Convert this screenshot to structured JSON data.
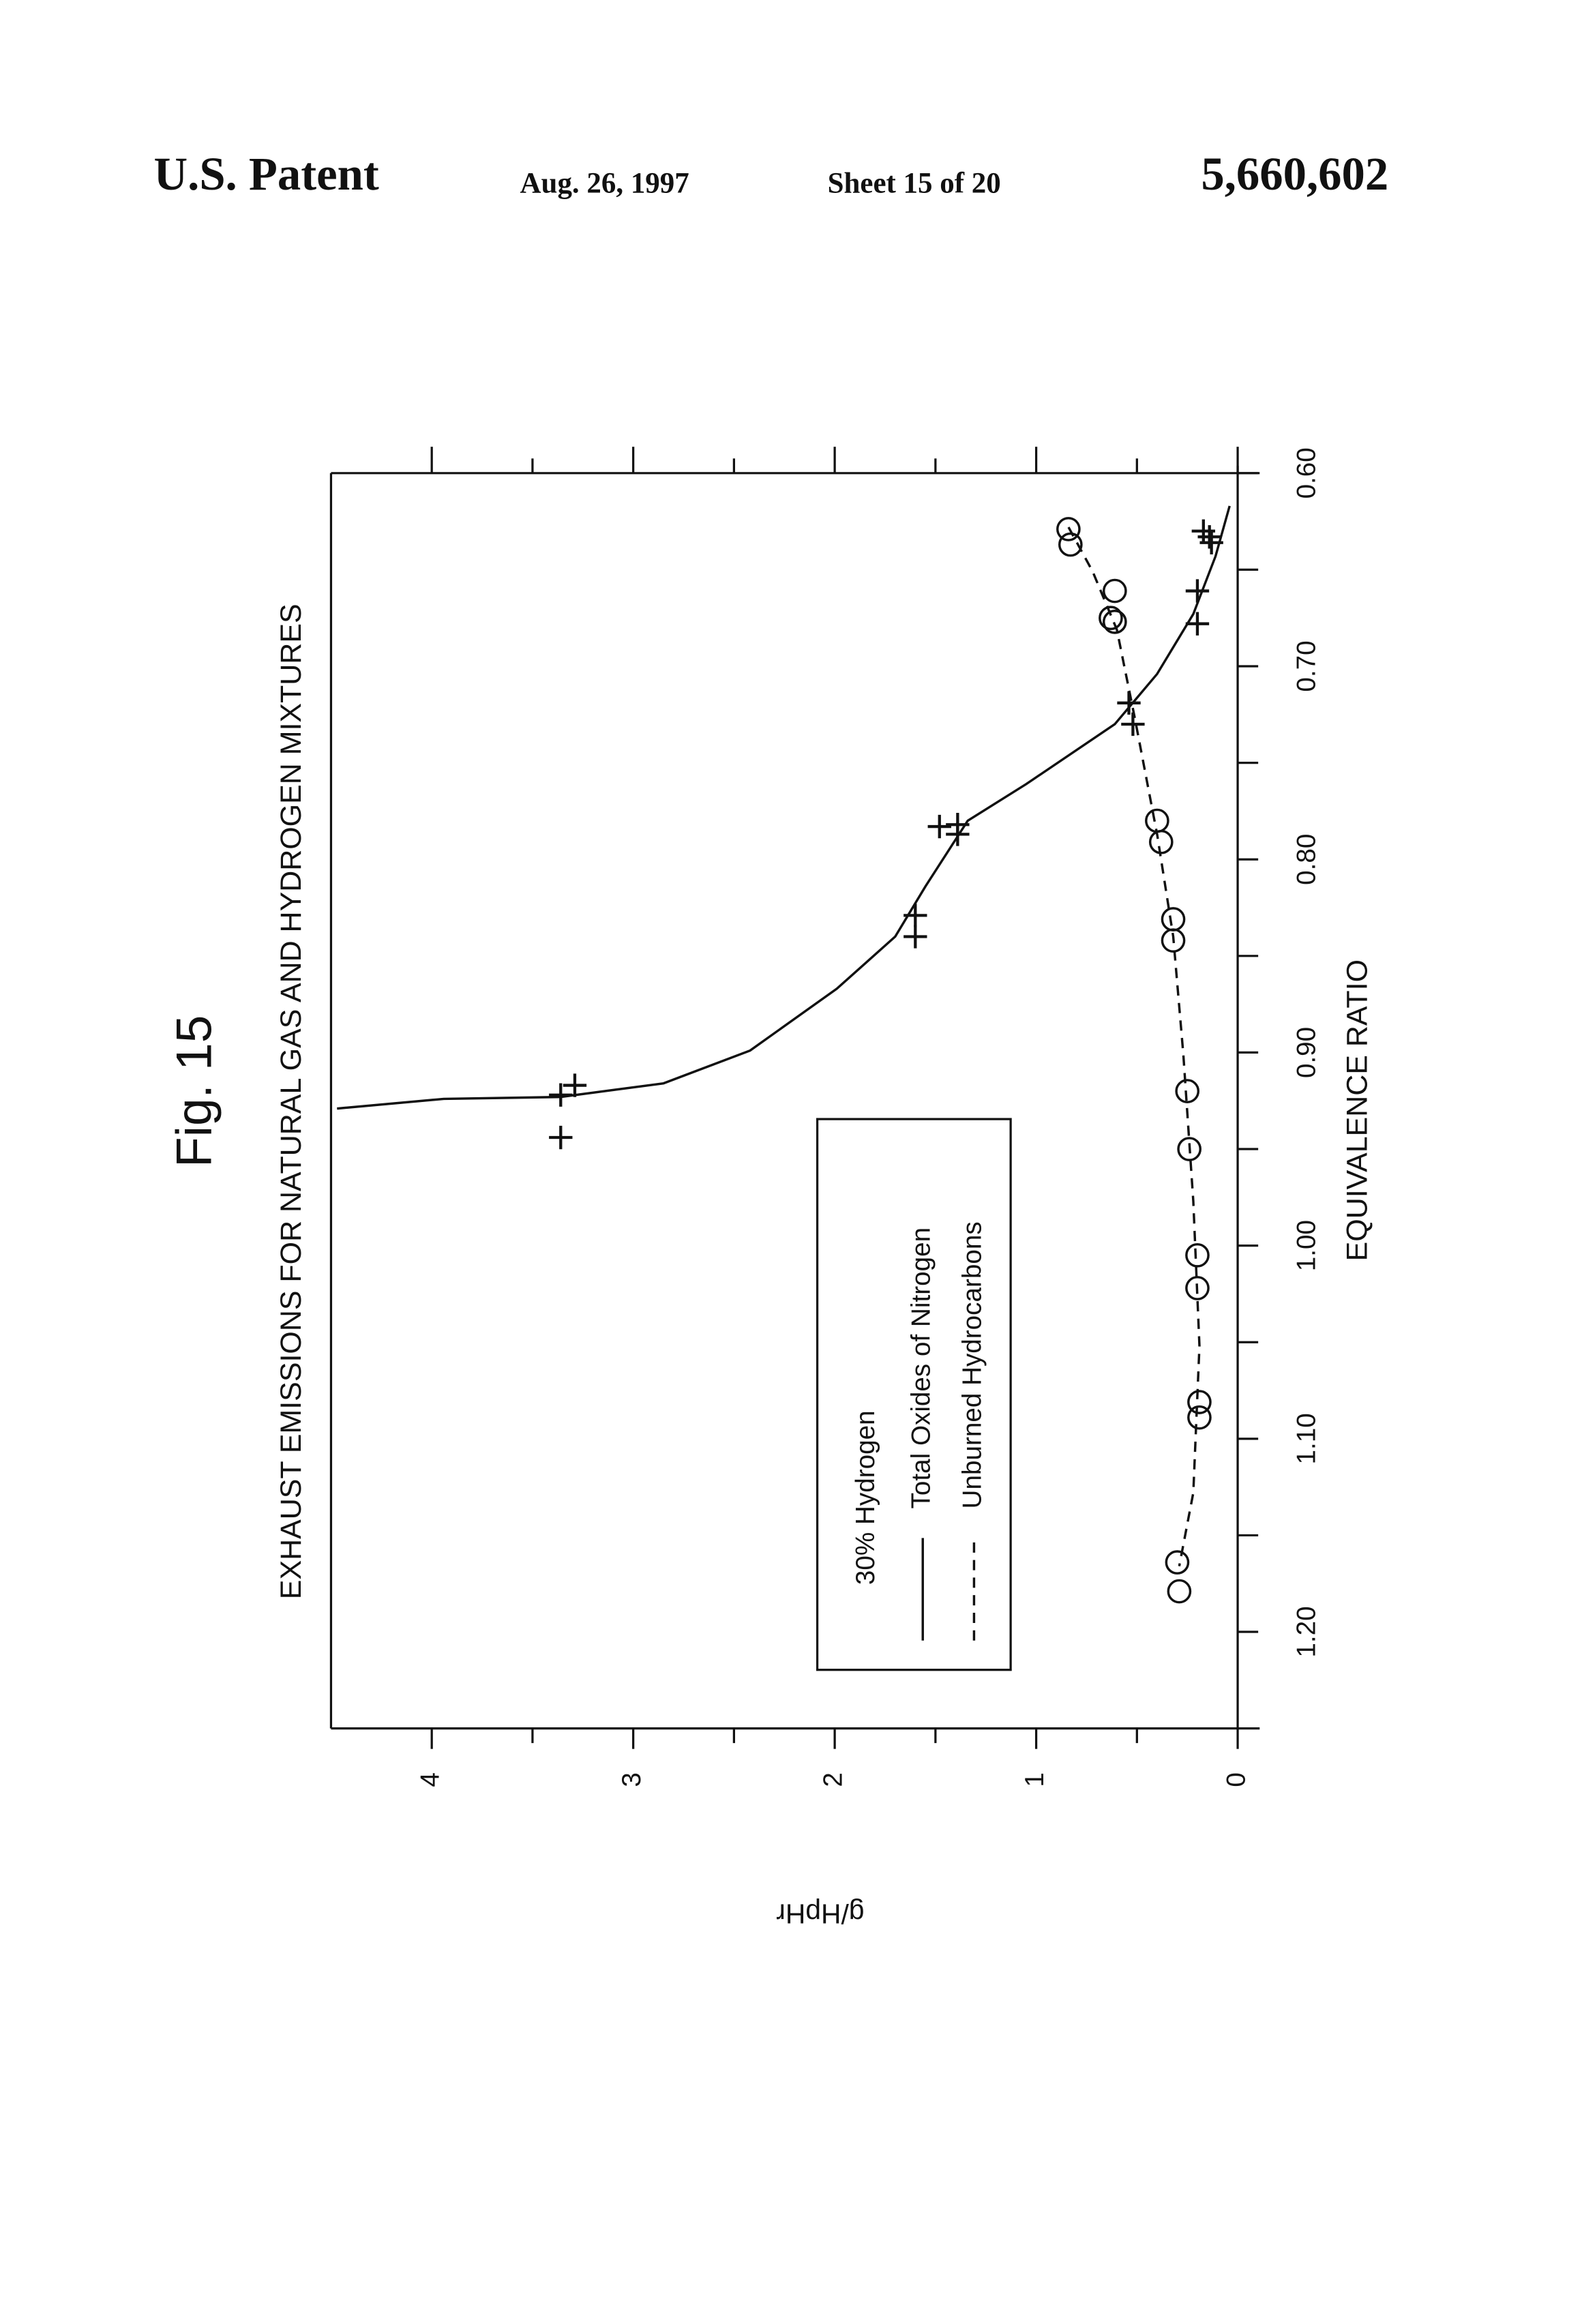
{
  "header": {
    "left": "U.S. Patent",
    "date": "Aug. 26, 1997",
    "sheet": "Sheet 15 of 20",
    "number": "5,660,602"
  },
  "chart_data": {
    "type": "scatter",
    "figure_label": "Fig. 15",
    "title": "EXHAUST EMISSIONS FOR NATURAL GAS AND HYDROGEN MIXTURES",
    "xlabel": "EQUIVALENCE RATIO",
    "ylabel": "g/HpHr",
    "legend_title": "30% Hydrogen",
    "xlim": [
      0.6,
      1.25
    ],
    "ylim": [
      0,
      4.5
    ],
    "xticks": [
      {
        "value": 0.6,
        "label": "0.60"
      },
      {
        "value": 0.7,
        "label": "0.70"
      },
      {
        "value": 0.8,
        "label": "0.80"
      },
      {
        "value": 0.9,
        "label": "0.90"
      },
      {
        "value": 1.0,
        "label": "1.00"
      },
      {
        "value": 1.1,
        "label": "1.10"
      },
      {
        "value": 1.2,
        "label": "1.20"
      }
    ],
    "xticks_minor": [
      0.65,
      0.75,
      0.85,
      0.95,
      1.05,
      1.15
    ],
    "yticks": [
      0,
      1,
      2,
      3,
      4
    ],
    "yticks_minor": [
      0.5,
      1.5,
      2.5,
      3.5
    ],
    "series": [
      {
        "name": "Total Oxides of Nitrogen",
        "marker": "plus",
        "line": "solid",
        "color": "#111111",
        "x": [
          0.944,
          0.922,
          0.917,
          0.829,
          0.84,
          0.783,
          0.787,
          0.782,
          0.719,
          0.73,
          0.678,
          0.661,
          0.633,
          0.636,
          0.63
        ],
        "values": [
          3.36,
          3.36,
          3.29,
          1.6,
          1.6,
          1.48,
          1.39,
          1.39,
          0.54,
          0.52,
          0.2,
          0.2,
          0.14,
          0.13,
          0.17
        ],
        "curve_x": [
          0.929,
          0.924,
          0.923,
          0.916,
          0.899,
          0.867,
          0.84,
          0.814,
          0.78,
          0.761,
          0.73,
          0.704,
          0.673,
          0.643,
          0.617
        ],
        "curve_values": [
          4.47,
          3.94,
          3.36,
          2.85,
          2.42,
          1.99,
          1.7,
          1.55,
          1.34,
          1.05,
          0.61,
          0.4,
          0.22,
          0.11,
          0.04
        ]
      },
      {
        "name": "Unburned Hydrocarbons",
        "marker": "circle",
        "line": "dashed",
        "color": "#111111",
        "x": [
          0.629,
          0.637,
          0.661,
          0.675,
          0.677,
          0.78,
          0.791,
          0.831,
          0.842,
          0.92,
          0.95,
          1.005,
          1.022,
          1.081,
          1.089,
          1.164,
          1.179
        ],
        "values": [
          0.84,
          0.83,
          0.61,
          0.63,
          0.61,
          0.4,
          0.38,
          0.32,
          0.32,
          0.25,
          0.24,
          0.2,
          0.2,
          0.19,
          0.19,
          0.3,
          0.29
        ],
        "curve_x": [
          0.628,
          0.651,
          0.681,
          0.727,
          0.787,
          0.84,
          0.901,
          0.977,
          1.052,
          1.128,
          1.166
        ],
        "curve_values": [
          0.84,
          0.72,
          0.6,
          0.51,
          0.4,
          0.32,
          0.27,
          0.22,
          0.19,
          0.22,
          0.29
        ]
      }
    ]
  }
}
